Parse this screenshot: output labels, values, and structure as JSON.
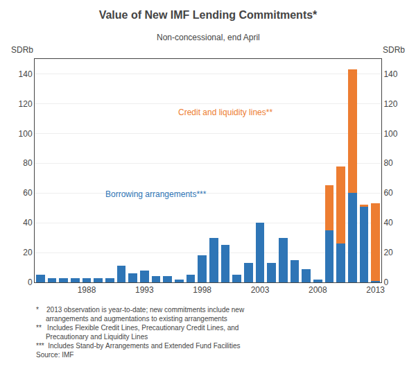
{
  "chart_data": {
    "type": "bar",
    "stacked": true,
    "title": "Value of New IMF Lending Commitments*",
    "subtitle": "Non-concessional, end April",
    "ylabel": "SDRb",
    "y2label": "SDRb",
    "categories": [
      null,
      null,
      null,
      null,
      "1988",
      null,
      null,
      null,
      null,
      "1993",
      null,
      null,
      null,
      null,
      "1998",
      null,
      null,
      null,
      null,
      "2003",
      null,
      null,
      null,
      null,
      "2008",
      null,
      null,
      null,
      null,
      "2013"
    ],
    "series": [
      {
        "color": "#2E75B6",
        "values": [
          5,
          3,
          3,
          3,
          3,
          3,
          3,
          11,
          6,
          8,
          4,
          4,
          2,
          5,
          18,
          30,
          25,
          5,
          13,
          40,
          13,
          30,
          15,
          9,
          2,
          35,
          26,
          60,
          51,
          1
        ]
      },
      {
        "color": "#ED7D31",
        "values": [
          0,
          0,
          0,
          0,
          0,
          0,
          0,
          0,
          0,
          0,
          0,
          0,
          0,
          0,
          0,
          0,
          0,
          0,
          0,
          0,
          0,
          0,
          0,
          0,
          0,
          30,
          52,
          83,
          1,
          52
        ]
      }
    ],
    "ylim": [
      0,
      150
    ],
    "yticks": [
      0,
      20,
      40,
      60,
      80,
      100,
      120,
      140
    ],
    "y2lim": [
      0,
      150
    ],
    "y2ticks": [
      0,
      20,
      40,
      60,
      80,
      100,
      120,
      140
    ],
    "grid": true,
    "annotations": [
      {
        "text": "Credit and liquidity lines**",
        "x": 16,
        "y": 110,
        "color": "#ED7D31"
      },
      {
        "text": "Borrowing arrangements***",
        "x": 10,
        "y": 55,
        "color": "#2E75B6"
      }
    ],
    "footnote": "*    2013 observation is year-to-date; new commitments include new\n     arrangements and augmentations to existing arrangements\n**   Includes Flexible Credit Lines, Precautionary Credit Lines, and\n     Precautionary and Liquidity Lines\n***  Includes Stand-by Arrangements and Extended Fund Facilities\nSource: IMF"
  }
}
